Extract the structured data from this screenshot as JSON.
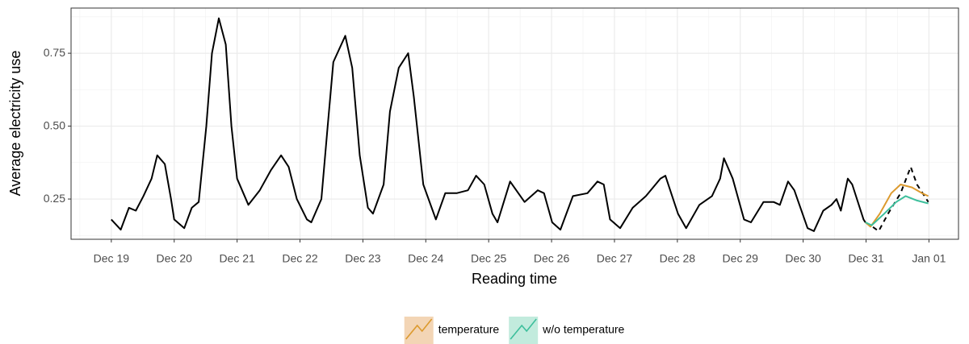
{
  "chart_data": {
    "type": "line",
    "xlabel": "Reading time",
    "ylabel": "Average electricity use",
    "xlim": [
      -0.64,
      13.47
    ],
    "ylim": [
      0.112,
      0.905
    ],
    "xticks": [
      {
        "value": 0,
        "label": "Dec 19"
      },
      {
        "value": 1,
        "label": "Dec 20"
      },
      {
        "value": 2,
        "label": "Dec 21"
      },
      {
        "value": 3,
        "label": "Dec 22"
      },
      {
        "value": 4,
        "label": "Dec 23"
      },
      {
        "value": 5,
        "label": "Dec 24"
      },
      {
        "value": 6,
        "label": "Dec 25"
      },
      {
        "value": 7,
        "label": "Dec 26"
      },
      {
        "value": 8,
        "label": "Dec 27"
      },
      {
        "value": 9,
        "label": "Dec 28"
      },
      {
        "value": 10,
        "label": "Dec 29"
      },
      {
        "value": 11,
        "label": "Dec 30"
      },
      {
        "value": 12,
        "label": "Dec 31"
      },
      {
        "value": 13,
        "label": "Jan 01"
      }
    ],
    "yticks": [
      0.25,
      {
        "value": 0.5,
        "label": "0.50"
      },
      0.75
    ],
    "grid": true,
    "legend": "bottom",
    "series": [
      {
        "color": "#000000",
        "dashed": false,
        "x": [
          0,
          0.15,
          0.28,
          0.39,
          0.51,
          0.64,
          0.73,
          0.85,
          0.95,
          1.0,
          1.16,
          1.28,
          1.39,
          1.51,
          1.6,
          1.71,
          1.82,
          1.91,
          2.0,
          2.18,
          2.36,
          2.54,
          2.7,
          2.82,
          2.95,
          3.11,
          3.18,
          3.34,
          3.44,
          3.53,
          3.72,
          3.83,
          3.95,
          4.08,
          4.16,
          4.33,
          4.43,
          4.57,
          4.72,
          4.81,
          4.96,
          5.16,
          5.31,
          5.49,
          5.67,
          5.8,
          5.93,
          6.06,
          6.14,
          6.34,
          6.57,
          6.78,
          6.88,
          7.01,
          7.14,
          7.34,
          7.57,
          7.73,
          7.83,
          7.93,
          8.09,
          8.29,
          8.5,
          8.73,
          8.81,
          9.01,
          9.14,
          9.35,
          9.55,
          9.68,
          9.74,
          9.88,
          10.06,
          10.17,
          10.37,
          10.53,
          10.63,
          10.76,
          10.86,
          11.07,
          11.17,
          11.32,
          11.45,
          11.53,
          11.6,
          11.71,
          11.78,
          11.96,
          11.99
        ],
        "values": [
          0.18,
          0.145,
          0.22,
          0.21,
          0.26,
          0.32,
          0.4,
          0.37,
          0.25,
          0.18,
          0.15,
          0.22,
          0.24,
          0.5,
          0.75,
          0.87,
          0.78,
          0.5,
          0.32,
          0.23,
          0.28,
          0.35,
          0.4,
          0.36,
          0.25,
          0.18,
          0.17,
          0.25,
          0.5,
          0.72,
          0.81,
          0.7,
          0.4,
          0.22,
          0.2,
          0.3,
          0.55,
          0.7,
          0.75,
          0.6,
          0.3,
          0.18,
          0.27,
          0.27,
          0.28,
          0.33,
          0.3,
          0.2,
          0.17,
          0.31,
          0.24,
          0.28,
          0.27,
          0.17,
          0.145,
          0.26,
          0.27,
          0.31,
          0.3,
          0.18,
          0.15,
          0.22,
          0.26,
          0.32,
          0.33,
          0.2,
          0.15,
          0.23,
          0.26,
          0.32,
          0.39,
          0.32,
          0.18,
          0.17,
          0.24,
          0.24,
          0.23,
          0.31,
          0.28,
          0.15,
          0.14,
          0.21,
          0.23,
          0.25,
          0.21,
          0.32,
          0.3,
          0.18,
          0.17
        ]
      },
      {
        "color": "#000000",
        "dashed": true,
        "x": [
          11.99,
          12.07,
          12.2,
          12.35,
          12.55,
          12.71,
          12.81,
          12.99
        ],
        "values": [
          0.17,
          0.16,
          0.14,
          0.2,
          0.27,
          0.36,
          0.3,
          0.24
        ]
      },
      {
        "name": "temperature",
        "color": "#DC9A2E",
        "fill": "#F3D5B5",
        "dashed": false,
        "x": [
          11.99,
          12.07,
          12.22,
          12.4,
          12.55,
          12.73,
          12.89,
          12.99
        ],
        "values": [
          0.17,
          0.155,
          0.2,
          0.27,
          0.3,
          0.29,
          0.27,
          0.26
        ]
      },
      {
        "name": "w/o temperature",
        "color": "#3DBF9C",
        "fill": "#C2EBDD",
        "dashed": false,
        "x": [
          11.99,
          12.09,
          12.29,
          12.48,
          12.63,
          12.81,
          12.99
        ],
        "values": [
          0.17,
          0.16,
          0.2,
          0.24,
          0.26,
          0.245,
          0.235
        ]
      }
    ]
  }
}
